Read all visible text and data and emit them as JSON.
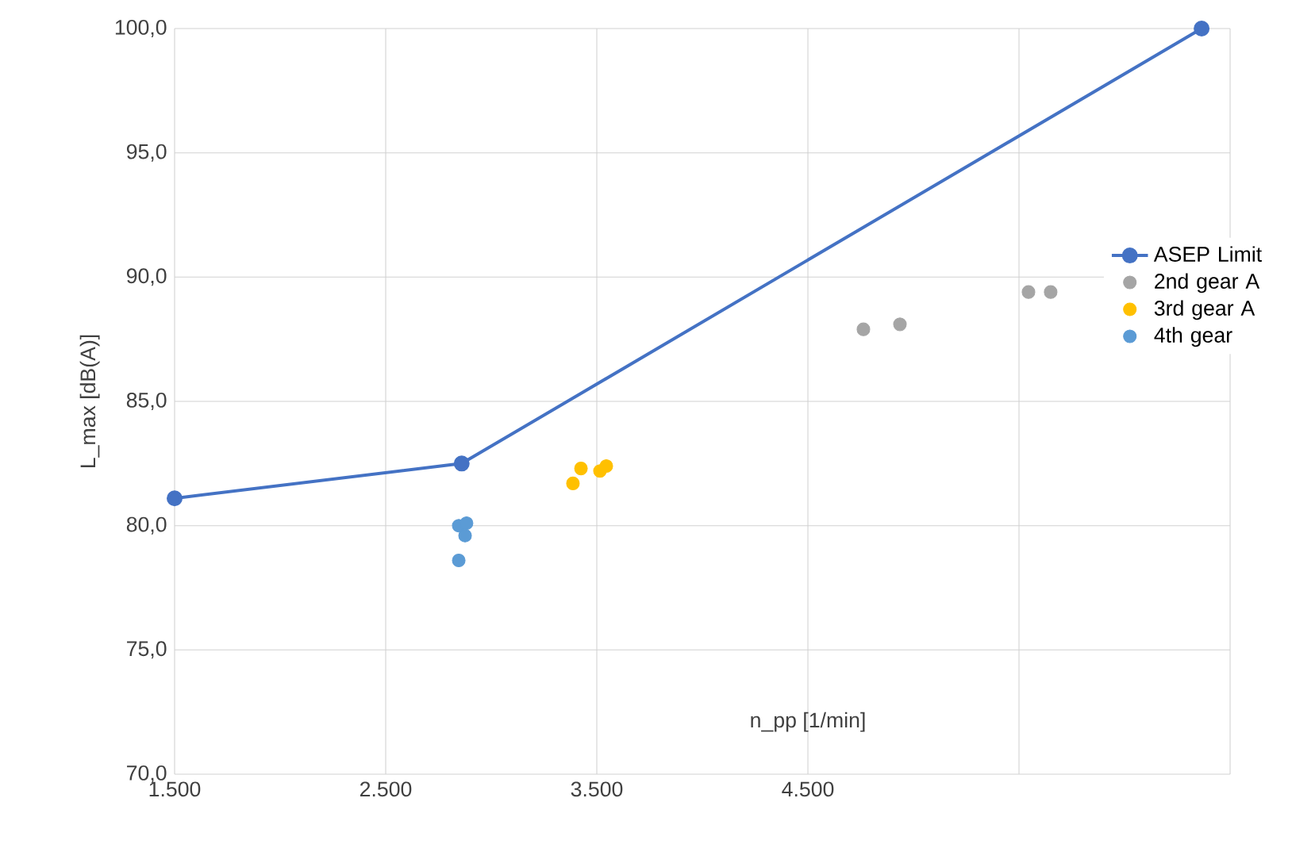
{
  "chart_data": {
    "type": "scatter",
    "xlabel": "n_pp [1/min]",
    "ylabel": "L_max [dB(A)]",
    "xlim": [
      1500,
      6500
    ],
    "ylim": [
      70,
      100
    ],
    "xticks": [
      {
        "value": 1500,
        "label": "1.500"
      },
      {
        "value": 2500,
        "label": "2.500"
      },
      {
        "value": 3500,
        "label": "3.500"
      },
      {
        "value": 4500,
        "label": "4.500"
      },
      {
        "value": 5500,
        "label": null
      },
      {
        "value": 6500,
        "label": null
      }
    ],
    "yticks": [
      {
        "value": 70,
        "label": "70,0"
      },
      {
        "value": 75,
        "label": "75,0"
      },
      {
        "value": 80,
        "label": "80,0"
      },
      {
        "value": 85,
        "label": "85,0"
      },
      {
        "value": 90,
        "label": "90,0"
      },
      {
        "value": 95,
        "label": "95,0"
      },
      {
        "value": 100,
        "label": "100,0"
      }
    ],
    "grid": true,
    "legend": "right",
    "marker": "circle",
    "series": [
      {
        "name": "ASEP Limit",
        "type": "line",
        "color": "#4472c4",
        "x": [
          1500,
          2860,
          6365
        ],
        "values": [
          81.1,
          82.5,
          100
        ]
      },
      {
        "name": "2nd gear A",
        "color": "#a5a5a5",
        "x": [
          4763,
          4936,
          5545,
          5650
        ],
        "values": [
          87.9,
          88.1,
          89.4,
          89.4
        ]
      },
      {
        "name": "3rd gear A",
        "color": "#ffc000",
        "x": [
          3387,
          3425,
          3515,
          3545
        ],
        "values": [
          81.7,
          82.3,
          82.2,
          82.4
        ]
      },
      {
        "name": "4th gear",
        "color": "#5b9bd5",
        "x": [
          2846,
          2883,
          2876,
          2846
        ],
        "values": [
          80.0,
          80.1,
          79.6,
          78.6
        ]
      }
    ]
  }
}
